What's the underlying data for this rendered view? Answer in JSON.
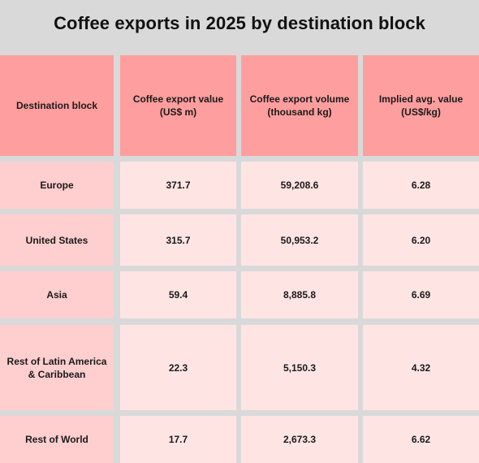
{
  "chart_data": {
    "type": "table",
    "title": "Coffee exports in 2025 by destination block",
    "columns": [
      "Destination block",
      "Coffee export value (US$ m)",
      "Coffee export volume (thousand kg)",
      "Implied avg. value (US$/kg)"
    ],
    "rows": [
      [
        "Europe",
        "371.7",
        "59,208.6",
        "6.28"
      ],
      [
        "United States",
        "315.7",
        "50,953.2",
        "6.20"
      ],
      [
        "Asia",
        "59.4",
        "8,885.8",
        "6.69"
      ],
      [
        "Rest of Latin America & Caribbean",
        "22.3",
        "5,150.3",
        "4.32"
      ],
      [
        "Rest of World",
        "17.7",
        "2,673.3",
        "6.62"
      ]
    ]
  },
  "colors": {
    "page_background": "#d9d9d9",
    "header_fill": "#ff9e9e",
    "first_column_fill": "#ffcece",
    "body_fill": "#ffe4e4"
  }
}
